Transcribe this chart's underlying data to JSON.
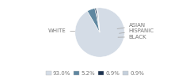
{
  "labels": [
    "WHITE",
    "ASIAN",
    "HISPANIC",
    "BLACK"
  ],
  "values": [
    93.0,
    5.2,
    0.9,
    0.9
  ],
  "colors": [
    "#d4dce6",
    "#5f87a0",
    "#1c3350",
    "#c5d0dc"
  ],
  "legend_labels": [
    "93.0%",
    "5.2%",
    "0.9%",
    "0.9%"
  ],
  "legend_colors": [
    "#d4dce6",
    "#5f87a0",
    "#1c3350",
    "#c5d0dc"
  ],
  "bg_color": "#ffffff",
  "label_fontsize": 5.0,
  "legend_fontsize": 5.0,
  "startangle": 95
}
